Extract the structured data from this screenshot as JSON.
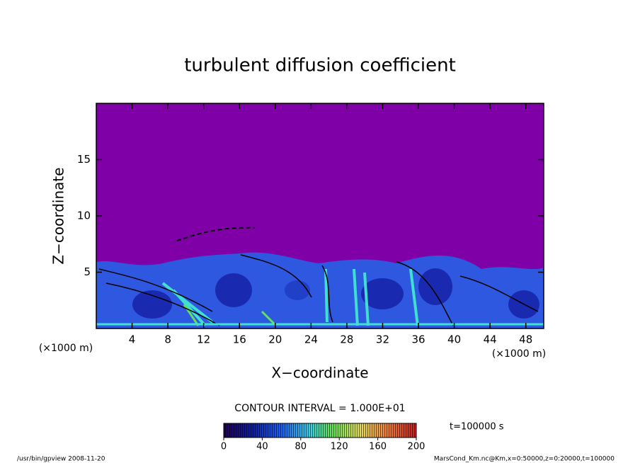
{
  "chart_data": {
    "type": "contour",
    "title": "turbulent diffusion coefficient",
    "x_label": "X−coordinate",
    "y_label": "Z−coordinate",
    "x_unit_label": "(×1000 m)",
    "y_unit_label": "(×1000 m)",
    "xlim": [
      0,
      50
    ],
    "xticks": [
      4,
      8,
      12,
      16,
      20,
      24,
      28,
      32,
      36,
      40,
      44,
      48
    ],
    "ylim": [
      0,
      20
    ],
    "yticks": [
      5,
      10,
      15
    ],
    "contour_interval_label": "CONTOUR INTERVAL = 1.000E+01",
    "colorbar": {
      "lim": [
        0,
        200
      ],
      "ticks": [
        0,
        40,
        80,
        120,
        160,
        200
      ]
    },
    "time_label": "t=100000 s",
    "footer_left": "/usr/bin/gpview   2008-11-20",
    "footer_right": "MarsCond_Km.nc@Km,x=0:50000,z=0:20000,t=100000"
  }
}
